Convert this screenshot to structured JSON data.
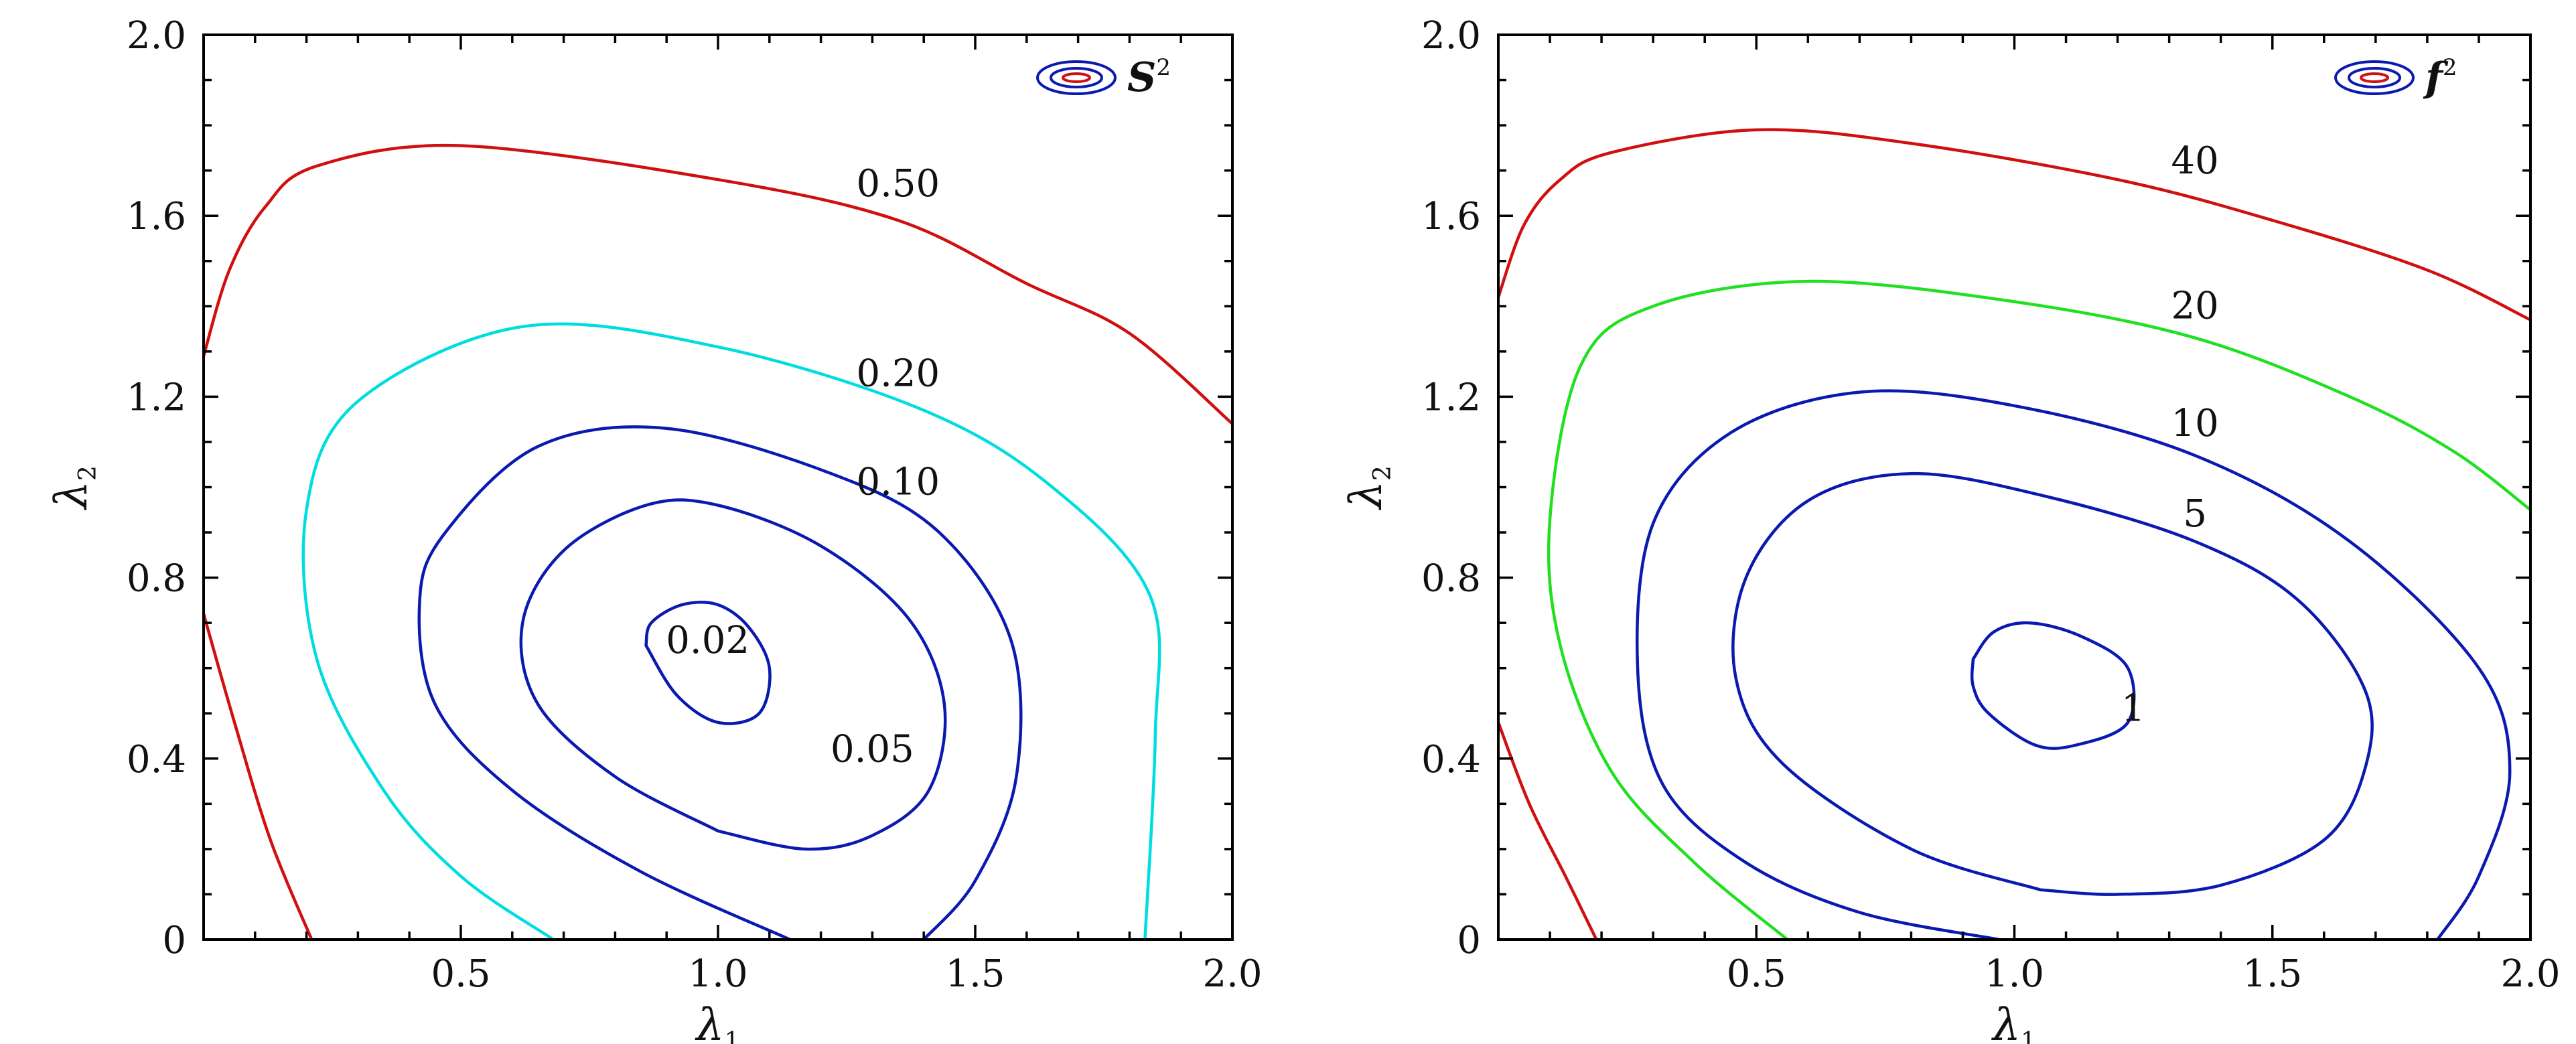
{
  "chart_data": [
    {
      "type": "contour",
      "xlabel": "λ",
      "xlabel_sub": "1",
      "ylabel": "λ",
      "ylabel_sub": "2",
      "xlim": [
        0,
        2.0
      ],
      "ylim": [
        0,
        2.0
      ],
      "xticks": [
        0.5,
        1.0,
        1.5,
        2.0
      ],
      "xtick_labels": [
        "0.5",
        "1.0",
        "1.5",
        "2.0"
      ],
      "yticks": [
        0,
        0.4,
        0.8,
        1.2,
        1.6,
        2.0
      ],
      "ytick_labels": [
        "0",
        "0.4",
        "0.8",
        "1.2",
        "1.6",
        "2.0"
      ],
      "legend": {
        "text": "S",
        "sup": "2",
        "position": "top-right"
      },
      "grid": false,
      "contours": [
        {
          "level": "0.50",
          "color": "#d01010",
          "label_at": [
            1.35,
            1.67
          ],
          "points": [
            [
              0.0,
              1.29
            ],
            [
              0.05,
              1.48
            ],
            [
              0.12,
              1.62
            ],
            [
              0.22,
              1.71
            ],
            [
              0.5,
              1.755
            ],
            [
              1.0,
              1.68
            ],
            [
              1.35,
              1.59
            ],
            [
              1.6,
              1.45
            ],
            [
              1.8,
              1.34
            ],
            [
              2.0,
              1.14
            ]
          ]
        },
        {
          "level": "0.50",
          "color": "#d01010",
          "label_at": null,
          "points": [
            [
              0.0,
              0.72
            ],
            [
              0.06,
              0.48
            ],
            [
              0.13,
              0.22
            ],
            [
              0.21,
              0.0
            ]
          ]
        },
        {
          "level": "0.20",
          "color": "#00dde0",
          "label_at": [
            1.35,
            1.25
          ],
          "points": [
            [
              0.68,
              0.0
            ],
            [
              0.5,
              0.14
            ],
            [
              0.35,
              0.33
            ],
            [
              0.22,
              0.62
            ],
            [
              0.2,
              0.95
            ],
            [
              0.3,
              1.19
            ],
            [
              0.62,
              1.355
            ],
            [
              1.0,
              1.31
            ],
            [
              1.4,
              1.17
            ],
            [
              1.65,
              1.0
            ],
            [
              1.84,
              0.76
            ],
            [
              1.85,
              0.45
            ],
            [
              1.83,
              0.0
            ]
          ]
        },
        {
          "level": "0.10",
          "color": "#0a1ab0",
          "label_at": [
            1.35,
            1.01
          ],
          "points": [
            [
              1.14,
              0.0
            ],
            [
              0.85,
              0.15
            ],
            [
              0.6,
              0.33
            ],
            [
              0.45,
              0.52
            ],
            [
              0.42,
              0.75
            ],
            [
              0.47,
              0.9
            ],
            [
              0.65,
              1.09
            ],
            [
              0.9,
              1.13
            ],
            [
              1.22,
              1.03
            ],
            [
              1.43,
              0.9
            ],
            [
              1.57,
              0.66
            ],
            [
              1.58,
              0.36
            ],
            [
              1.5,
              0.13
            ],
            [
              1.4,
              0.0
            ]
          ]
        },
        {
          "level": "0.05",
          "color": "#0a1ab0",
          "label_at": [
            1.3,
            0.42
          ],
          "points": [
            [
              1.0,
              0.24
            ],
            [
              0.8,
              0.36
            ],
            [
              0.65,
              0.52
            ],
            [
              0.62,
              0.7
            ],
            [
              0.7,
              0.86
            ],
            [
              0.86,
              0.96
            ],
            [
              1.0,
              0.96
            ],
            [
              1.2,
              0.87
            ],
            [
              1.37,
              0.71
            ],
            [
              1.44,
              0.52
            ],
            [
              1.41,
              0.33
            ],
            [
              1.3,
              0.23
            ],
            [
              1.17,
              0.2
            ],
            [
              1.0,
              0.24
            ]
          ]
        },
        {
          "level": "0.02",
          "color": "#0a1ab0",
          "label_at": [
            0.98,
            0.66
          ],
          "points": [
            [
              0.86,
              0.65
            ],
            [
              0.87,
              0.7
            ],
            [
              0.93,
              0.74
            ],
            [
              1.0,
              0.74
            ],
            [
              1.06,
              0.69
            ],
            [
              1.1,
              0.6
            ],
            [
              1.08,
              0.5
            ],
            [
              1.0,
              0.48
            ],
            [
              0.92,
              0.54
            ],
            [
              0.86,
              0.65
            ]
          ]
        }
      ]
    },
    {
      "type": "contour",
      "xlabel": "λ",
      "xlabel_sub": "1",
      "ylabel": "λ",
      "ylabel_sub": "2",
      "xlim": [
        0,
        2.0
      ],
      "ylim": [
        0,
        2.0
      ],
      "xticks": [
        0.5,
        1.0,
        1.5,
        2.0
      ],
      "xtick_labels": [
        "0.5",
        "1.0",
        "1.5",
        "2.0"
      ],
      "yticks": [
        0,
        0.4,
        0.8,
        1.2,
        1.6,
        2.0
      ],
      "ytick_labels": [
        "0",
        "0.4",
        "0.8",
        "1.2",
        "1.6",
        "2.0"
      ],
      "legend": {
        "text": "f",
        "sup": "2",
        "position": "top-right"
      },
      "grid": false,
      "contours": [
        {
          "level": "40",
          "color": "#d01010",
          "label_at": [
            1.35,
            1.72
          ],
          "points": [
            [
              0.0,
              1.42
            ],
            [
              0.05,
              1.58
            ],
            [
              0.12,
              1.68
            ],
            [
              0.22,
              1.74
            ],
            [
              0.5,
              1.79
            ],
            [
              0.8,
              1.76
            ],
            [
              1.2,
              1.68
            ],
            [
              1.5,
              1.59
            ],
            [
              1.8,
              1.48
            ],
            [
              2.0,
              1.37
            ]
          ]
        },
        {
          "level": "40",
          "color": "#d01010",
          "label_at": null,
          "points": [
            [
              0.0,
              0.48
            ],
            [
              0.06,
              0.3
            ],
            [
              0.13,
              0.14
            ],
            [
              0.19,
              0.0
            ]
          ]
        },
        {
          "level": "20",
          "color": "#20e020",
          "label_at": [
            1.35,
            1.4
          ],
          "points": [
            [
              0.56,
              0.0
            ],
            [
              0.38,
              0.17
            ],
            [
              0.22,
              0.37
            ],
            [
              0.12,
              0.65
            ],
            [
              0.1,
              0.93
            ],
            [
              0.16,
              1.27
            ],
            [
              0.3,
              1.4
            ],
            [
              0.6,
              1.455
            ],
            [
              1.0,
              1.41
            ],
            [
              1.35,
              1.33
            ],
            [
              1.65,
              1.2
            ],
            [
              1.85,
              1.08
            ],
            [
              2.0,
              0.95
            ]
          ]
        },
        {
          "level": "10",
          "color": "#0a1ab0",
          "label_at": [
            1.35,
            1.14
          ],
          "points": [
            [
              0.97,
              0.0
            ],
            [
              0.7,
              0.06
            ],
            [
              0.48,
              0.17
            ],
            [
              0.32,
              0.34
            ],
            [
              0.27,
              0.6
            ],
            [
              0.3,
              0.92
            ],
            [
              0.45,
              1.12
            ],
            [
              0.7,
              1.21
            ],
            [
              1.0,
              1.18
            ],
            [
              1.35,
              1.07
            ],
            [
              1.65,
              0.88
            ],
            [
              1.9,
              0.6
            ],
            [
              1.96,
              0.37
            ],
            [
              1.9,
              0.14
            ],
            [
              1.82,
              0.0
            ]
          ]
        },
        {
          "level": "5",
          "color": "#0a1ab0",
          "label_at": [
            1.35,
            0.94
          ],
          "points": [
            [
              1.05,
              0.11
            ],
            [
              0.8,
              0.2
            ],
            [
              0.55,
              0.39
            ],
            [
              0.46,
              0.58
            ],
            [
              0.48,
              0.8
            ],
            [
              0.6,
              0.97
            ],
            [
              0.8,
              1.03
            ],
            [
              1.06,
              0.98
            ],
            [
              1.35,
              0.88
            ],
            [
              1.55,
              0.75
            ],
            [
              1.68,
              0.55
            ],
            [
              1.68,
              0.38
            ],
            [
              1.6,
              0.22
            ],
            [
              1.4,
              0.12
            ],
            [
              1.2,
              0.1
            ],
            [
              1.05,
              0.11
            ]
          ]
        },
        {
          "level": "1",
          "color": "#0a1ab0",
          "label_at": [
            1.23,
            0.51
          ],
          "points": [
            [
              0.92,
              0.62
            ],
            [
              0.96,
              0.68
            ],
            [
              1.03,
              0.7
            ],
            [
              1.13,
              0.67
            ],
            [
              1.22,
              0.6
            ],
            [
              1.22,
              0.48
            ],
            [
              1.12,
              0.43
            ],
            [
              1.04,
              0.43
            ],
            [
              0.95,
              0.5
            ],
            [
              0.92,
              0.56
            ],
            [
              0.92,
              0.62
            ]
          ]
        }
      ]
    }
  ]
}
